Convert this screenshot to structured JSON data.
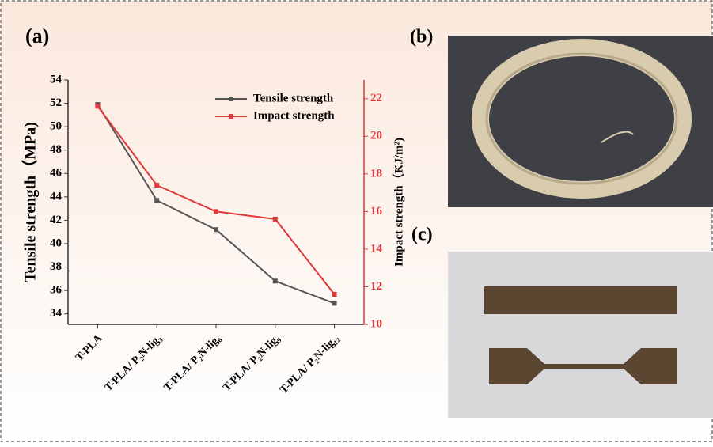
{
  "panel_labels": [
    "(a)",
    "(b)",
    "(c)"
  ],
  "chart_data": {
    "type": "line",
    "categories": [
      "T-PLA",
      "T-PLA/ P₂N-lig₃",
      "T-PLA/ P₂N-lig₆",
      "T-PLA/ P₂N-lig₉",
      "T-PLA/ P₂N-lig₁₂"
    ],
    "ylabel": "Tensile strength（MPa)",
    "y2label": "Impact strength（KJ/m²)",
    "ylim": [
      33.1,
      54
    ],
    "yticks": [
      34,
      36,
      38,
      40,
      42,
      44,
      46,
      48,
      50,
      52,
      54
    ],
    "y2lim": [
      10,
      23
    ],
    "y2ticks": [
      10,
      12,
      14,
      16,
      18,
      20,
      22
    ],
    "legend": "upper right",
    "series": [
      {
        "name": "Tensile strength",
        "color": "#555555",
        "values": [
          51.9,
          43.7,
          41.2,
          36.8,
          34.9
        ]
      },
      {
        "name": "Impact strength",
        "color": "#e0373a",
        "axis": "y2",
        "values": [
          21.6,
          17.4,
          16.0,
          15.6,
          11.6
        ]
      }
    ]
  }
}
